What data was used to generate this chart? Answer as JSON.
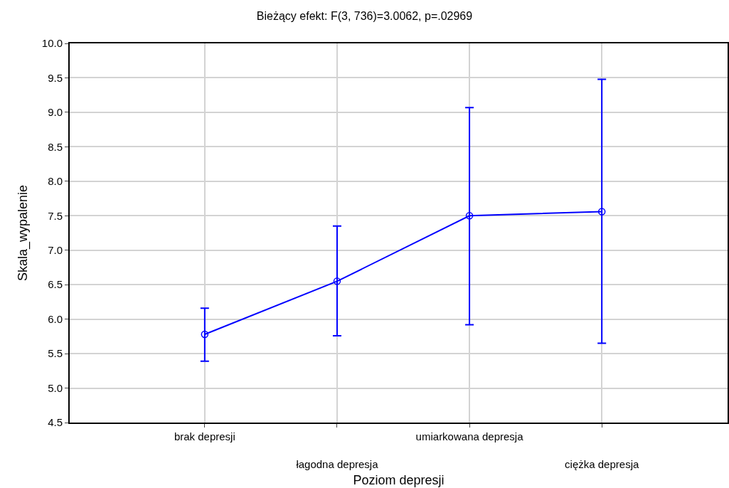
{
  "chart_data": {
    "type": "line",
    "title": "Bieżący efekt: F(3, 736)=3.0062, p=.02969",
    "xlabel": "Poziom depresji",
    "ylabel": "Skala_wypalenie",
    "categories": [
      "brak depresji",
      "łagodna depresja",
      "umiarkowana depresja",
      "ciężka depresja"
    ],
    "series": [
      {
        "color": "#0000ff",
        "values": [
          5.78,
          6.55,
          7.5,
          7.56
        ],
        "errors": [
          [
            5.39,
            6.16
          ],
          [
            5.76,
            7.35
          ],
          [
            5.92,
            9.07
          ],
          [
            5.65,
            9.48
          ]
        ]
      }
    ],
    "ylim": [
      4.5,
      10.0
    ],
    "yticks": [
      {
        "value": 4.5,
        "label": "4.5"
      },
      {
        "value": 5.0,
        "label": "5.0"
      },
      {
        "value": 5.5,
        "label": "5.5"
      },
      {
        "value": 6.0,
        "label": "6.0"
      },
      {
        "value": 6.5,
        "label": "6.5"
      },
      {
        "value": 7.0,
        "label": "7.0"
      },
      {
        "value": 7.5,
        "label": "7.5"
      },
      {
        "value": 8.0,
        "label": "8.0"
      },
      {
        "value": 8.5,
        "label": "8.5"
      },
      {
        "value": 9.0,
        "label": "9.0"
      },
      {
        "value": 9.5,
        "label": "9.5"
      },
      {
        "value": 10.0,
        "label": "10.0"
      }
    ],
    "grid": true,
    "marker": "circle",
    "line_style": "solid"
  }
}
